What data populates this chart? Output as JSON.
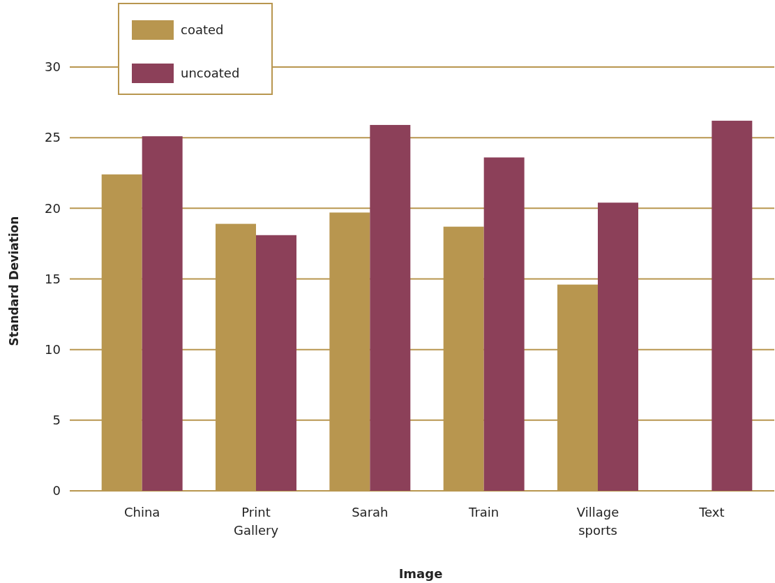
{
  "chart_data": {
    "type": "bar",
    "xlabel": "Image",
    "ylabel": "Standard Deviation",
    "categories": [
      "China",
      "Print Gallery",
      "Sarah",
      "Train",
      "Village sports",
      "Text"
    ],
    "series": [
      {
        "name": "coated",
        "color": "#b8964f",
        "values": [
          22.4,
          18.9,
          19.7,
          18.7,
          14.6,
          null
        ]
      },
      {
        "name": "uncoated",
        "color": "#8c4059",
        "values": [
          25.1,
          18.1,
          25.9,
          23.6,
          20.4,
          26.2
        ]
      }
    ],
    "ylim": [
      0,
      30
    ],
    "yticks": [
      0,
      5,
      10,
      15,
      20,
      25,
      30
    ],
    "grid": "y",
    "legend": "top left"
  }
}
